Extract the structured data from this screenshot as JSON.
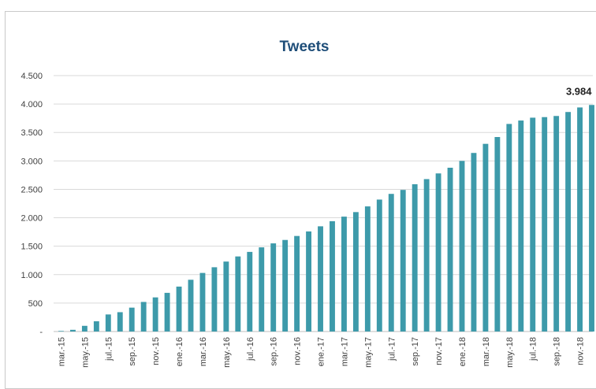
{
  "chart_data": {
    "type": "bar",
    "title": "Tweets",
    "xlabel": "",
    "ylabel": "",
    "ylim": [
      0,
      4500
    ],
    "yticks": [
      {
        "value": 0,
        "label": "-"
      },
      {
        "value": 500,
        "label": "500"
      },
      {
        "value": 1000,
        "label": "1.000"
      },
      {
        "value": 1500,
        "label": "1.500"
      },
      {
        "value": 2000,
        "label": "2.000"
      },
      {
        "value": 2500,
        "label": "2.500"
      },
      {
        "value": 3000,
        "label": "3.000"
      },
      {
        "value": 3500,
        "label": "3.500"
      },
      {
        "value": 4000,
        "label": "4.000"
      },
      {
        "value": 4500,
        "label": "4.500"
      }
    ],
    "grid": true,
    "bar_color": "#3d9aaa",
    "categories": [
      "mar.-15",
      "abr.-15",
      "may.-15",
      "jun.-15",
      "jul.-15",
      "ago.-15",
      "sep.-15",
      "oct.-15",
      "nov.-15",
      "dic.-15",
      "ene.-16",
      "feb.-16",
      "mar.-16",
      "abr.-16",
      "may.-16",
      "jun.-16",
      "jul.-16",
      "ago.-16",
      "sep.-16",
      "oct.-16",
      "nov.-16",
      "dic.-16",
      "ene.-17",
      "feb.-17",
      "mar.-17",
      "abr.-17",
      "may.-17",
      "jun.-17",
      "jul.-17",
      "ago.-17",
      "sep.-17",
      "oct.-17",
      "nov.-17",
      "dic.-17",
      "ene.-18",
      "feb.-18",
      "mar.-18",
      "abr.-18",
      "may.-18",
      "jun.-18",
      "jul.-18",
      "ago.-18",
      "sep.-18",
      "oct.-18",
      "nov.-18",
      "dic.-18"
    ],
    "tick_labels": [
      "mar.-15",
      "may.-15",
      "jul.-15",
      "sep.-15",
      "nov.-15",
      "ene.-16",
      "mar.-16",
      "may.-16",
      "jul.-16",
      "sep.-16",
      "nov.-16",
      "ene.-17",
      "mar.-17",
      "may.-17",
      "jul.-17",
      "sep.-17",
      "nov.-17",
      "ene.-18",
      "mar.-18",
      "may.-18",
      "jul.-18",
      "sep.-18",
      "nov.-18"
    ],
    "values": [
      10,
      30,
      100,
      180,
      300,
      340,
      420,
      520,
      600,
      680,
      790,
      910,
      1030,
      1130,
      1230,
      1320,
      1400,
      1480,
      1550,
      1610,
      1680,
      1760,
      1850,
      1940,
      2020,
      2100,
      2200,
      2320,
      2420,
      2490,
      2590,
      2680,
      2780,
      2880,
      3000,
      3140,
      3300,
      3420,
      3650,
      3710,
      3760,
      3770,
      3790,
      3860,
      3940,
      3984
    ],
    "data_labels": [
      {
        "index": 45,
        "text": "3.984"
      }
    ]
  }
}
